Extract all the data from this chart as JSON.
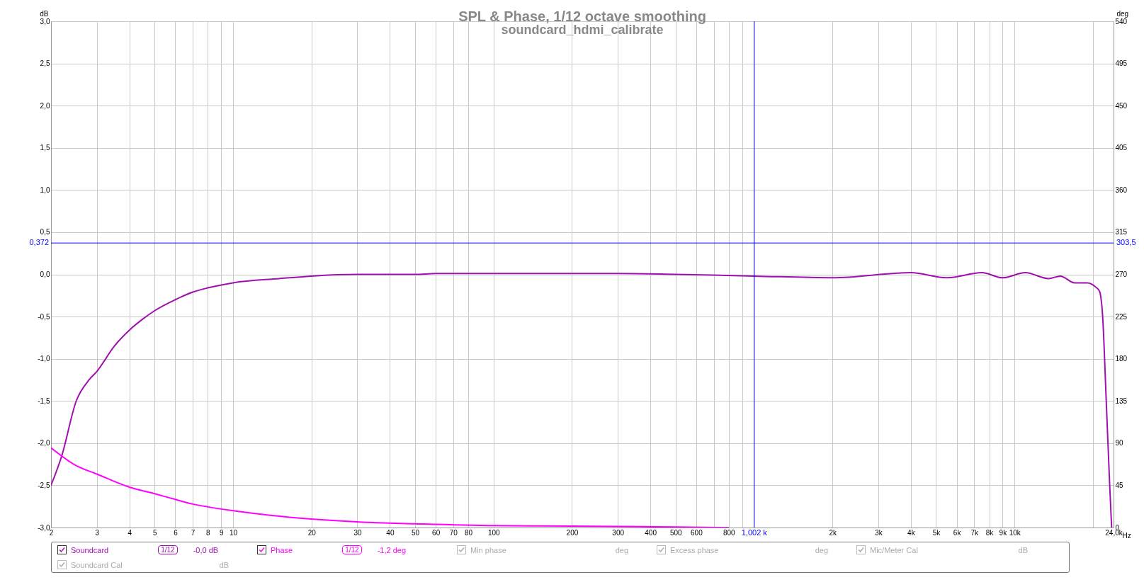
{
  "chart_data": {
    "type": "line",
    "title": "SPL & Phase, 1/12 octave smoothing",
    "subtitle": "soundcard_hdmi_calibrate",
    "xlabel": "Hz",
    "ylabel": "dB",
    "y2label": "deg",
    "log": "x",
    "grid": true,
    "legend": "bottom",
    "xlim": [
      2,
      24000
    ],
    "xticks": [
      2,
      3,
      4,
      5,
      6,
      7,
      8,
      9,
      10,
      20,
      30,
      40,
      50,
      60,
      70,
      80,
      100,
      200,
      300,
      400,
      500,
      600,
      {
        "value": 700,
        "label": null
      },
      800,
      {
        "value": 900,
        "label": null
      },
      {
        "value": 1000,
        "label": null
      },
      {
        "value": 2000,
        "label": "2k"
      },
      {
        "value": 3000,
        "label": "3k"
      },
      {
        "value": 4000,
        "label": "4k"
      },
      {
        "value": 5000,
        "label": "5k"
      },
      {
        "value": 6000,
        "label": "6k"
      },
      {
        "value": 7000,
        "label": "7k"
      },
      {
        "value": 8000,
        "label": "8k"
      },
      {
        "value": 9000,
        "label": "9k"
      },
      {
        "value": 10000,
        "label": "10k"
      },
      {
        "value": 20000,
        "label": null
      },
      {
        "value": 24000,
        "label": "24,0k"
      }
    ],
    "ylim": [
      -3,
      3
    ],
    "yticks": [
      {
        "value": -3,
        "label": "-3,0"
      },
      {
        "value": -2.5,
        "label": "-2,5"
      },
      {
        "value": -2,
        "label": "-2,0"
      },
      {
        "value": -1.5,
        "label": "-1,5"
      },
      {
        "value": -1,
        "label": "-1,0"
      },
      {
        "value": -0.5,
        "label": "-0,5"
      },
      {
        "value": 0,
        "label": "0,0"
      },
      {
        "value": 0.5,
        "label": "0,5"
      },
      {
        "value": 1,
        "label": "1,0"
      },
      {
        "value": 1.5,
        "label": "1,5"
      },
      {
        "value": 2,
        "label": "2,0"
      },
      {
        "value": 2.5,
        "label": "2,5"
      },
      {
        "value": 3,
        "label": "3,0"
      }
    ],
    "y2lim": [
      0,
      540
    ],
    "y2ticks": [
      0,
      45,
      90,
      135,
      180,
      225,
      270,
      315,
      360,
      405,
      450,
      495,
      540
    ],
    "series": [
      {
        "name": "Soundcard",
        "color": "#a010b0",
        "x": [
          2,
          2.2,
          2.5,
          2.8,
          3,
          3.5,
          4,
          4.5,
          5,
          6,
          7,
          8,
          10,
          15,
          20,
          30,
          50,
          60,
          100,
          200,
          300,
          500,
          1000,
          2000,
          4000,
          5500,
          7500,
          9000,
          11000,
          13500,
          15000,
          17000,
          19000,
          20500,
          21200,
          21800,
          22500,
          23200,
          23600
        ],
        "values": [
          -2.5,
          -2.15,
          -1.5,
          -1.25,
          -1.15,
          -0.85,
          -0.66,
          -0.53,
          -0.43,
          -0.3,
          -0.21,
          -0.16,
          -0.1,
          -0.05,
          -0.02,
          0,
          0,
          0.01,
          0.01,
          0.01,
          0.01,
          0,
          -0.02,
          -0.04,
          0.02,
          -0.04,
          0.02,
          -0.04,
          0.02,
          -0.05,
          -0.02,
          -0.1,
          -0.1,
          -0.15,
          -0.2,
          -0.5,
          -1.5,
          -2.5,
          -3
        ]
      },
      {
        "name": "Phase",
        "color": "#ff00ff",
        "axis": "y2",
        "x": [
          2,
          2.5,
          3,
          4,
          5,
          6,
          7,
          8,
          10,
          20,
          30,
          50,
          100,
          200,
          500,
          800
        ],
        "values": [
          85,
          66,
          57,
          43,
          36,
          30,
          25,
          22,
          18,
          9,
          6,
          4,
          2,
          1.5,
          0.5,
          0
        ]
      }
    ],
    "ref_lines": [
      {
        "axis": "x",
        "value": 1002,
        "label": "1,002 k",
        "color": "#0000ff"
      },
      {
        "axis": "y",
        "value": 0.372,
        "label": "0,372",
        "color": "#0000ff"
      }
    ],
    "annotations": [
      "1/12",
      "-0,0 dB",
      "1/12",
      "-1,2 deg",
      "Min phase",
      "deg",
      "Excess phase",
      "deg",
      "Mic/Meter Cal",
      "dB",
      "Soundcard Cal",
      "dB",
      {
        "text": "303,5",
        "x": 24000,
        "y": 0.372
      }
    ]
  }
}
